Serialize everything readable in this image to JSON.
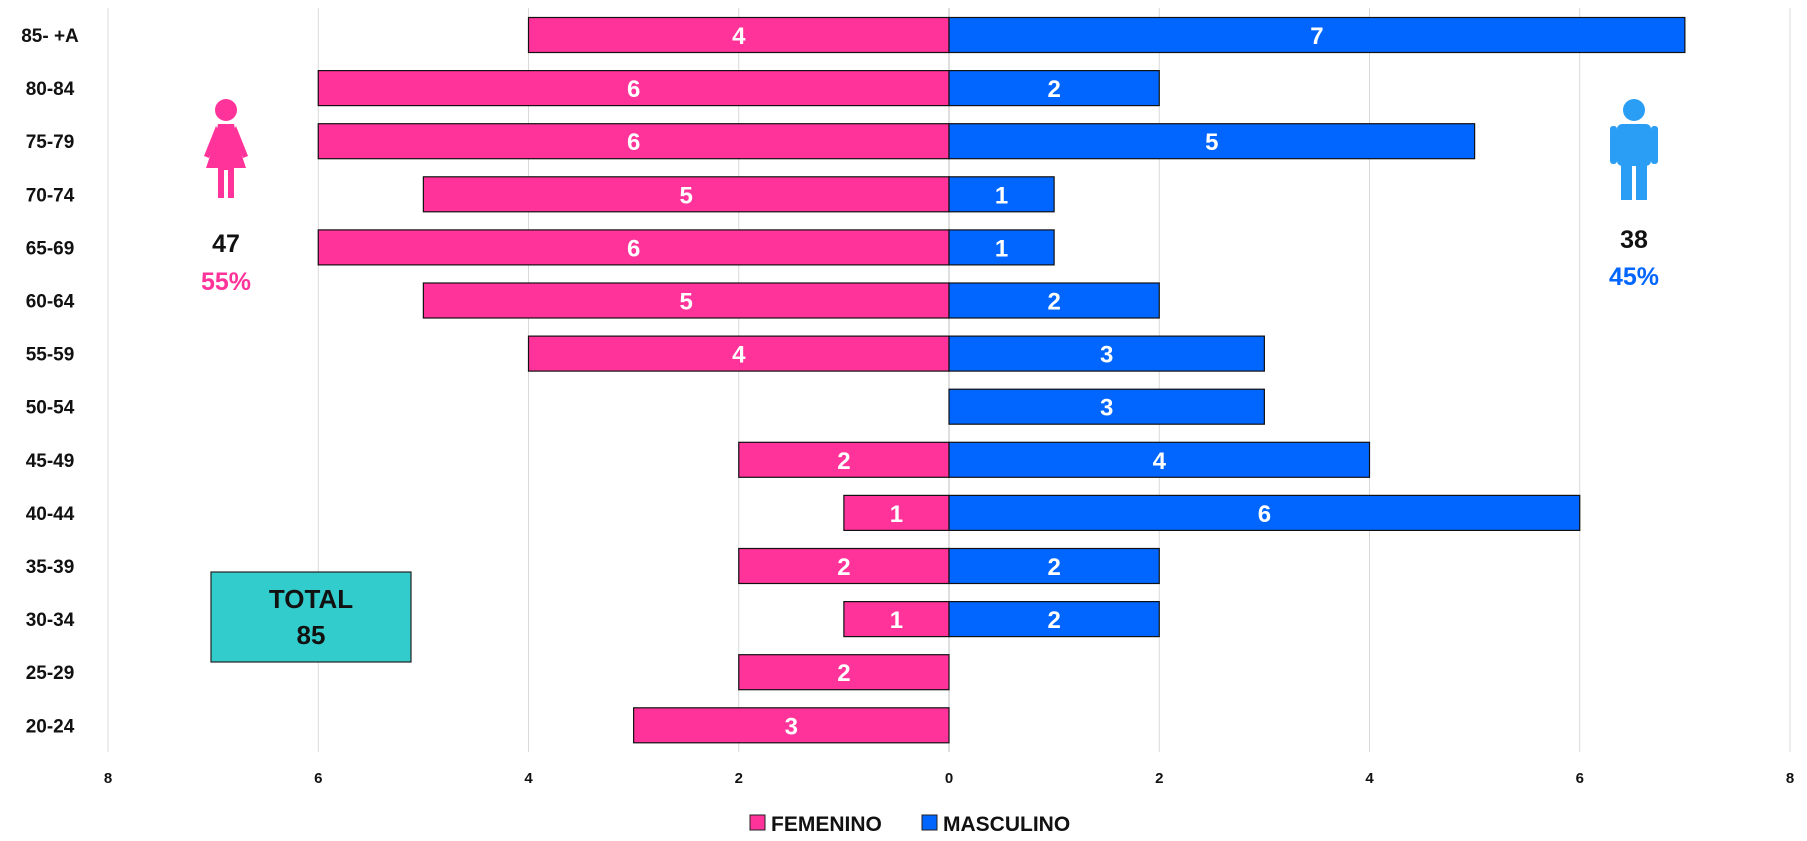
{
  "chart_data": {
    "type": "bar",
    "orientation": "horizontal",
    "layout": "population-pyramid",
    "categories": [
      "85- +A",
      "80-84",
      "75-79",
      "70-74",
      "65-69",
      "60-64",
      "55-59",
      "50-54",
      "45-49",
      "40-44",
      "35-39",
      "30-34",
      "25-29",
      "20-24"
    ],
    "series": [
      {
        "name": "FEMENINO",
        "side": "left",
        "color": "#ff3399",
        "values": [
          4,
          6,
          6,
          5,
          6,
          5,
          4,
          0,
          2,
          1,
          2,
          1,
          2,
          3
        ]
      },
      {
        "name": "MASCULINO",
        "side": "right",
        "color": "#0066ff",
        "values": [
          7,
          2,
          5,
          1,
          1,
          2,
          3,
          3,
          4,
          6,
          2,
          2,
          0,
          0
        ]
      }
    ],
    "xlim": [
      -8,
      8
    ],
    "x_ticks": [
      8,
      6,
      4,
      2,
      0,
      2,
      4,
      6,
      8
    ],
    "grid": true,
    "legend": "bottom-center",
    "xlabel": "",
    "ylabel": ""
  },
  "summary": {
    "female": {
      "count": "47",
      "percent": "55%",
      "color": "#ff3399",
      "icon": "woman-icon"
    },
    "male": {
      "count": "38",
      "percent": "45%",
      "color": "#0066ff",
      "icon": "man-icon"
    },
    "total": {
      "label": "TOTAL",
      "value": "85",
      "color": "#33cccc"
    }
  }
}
